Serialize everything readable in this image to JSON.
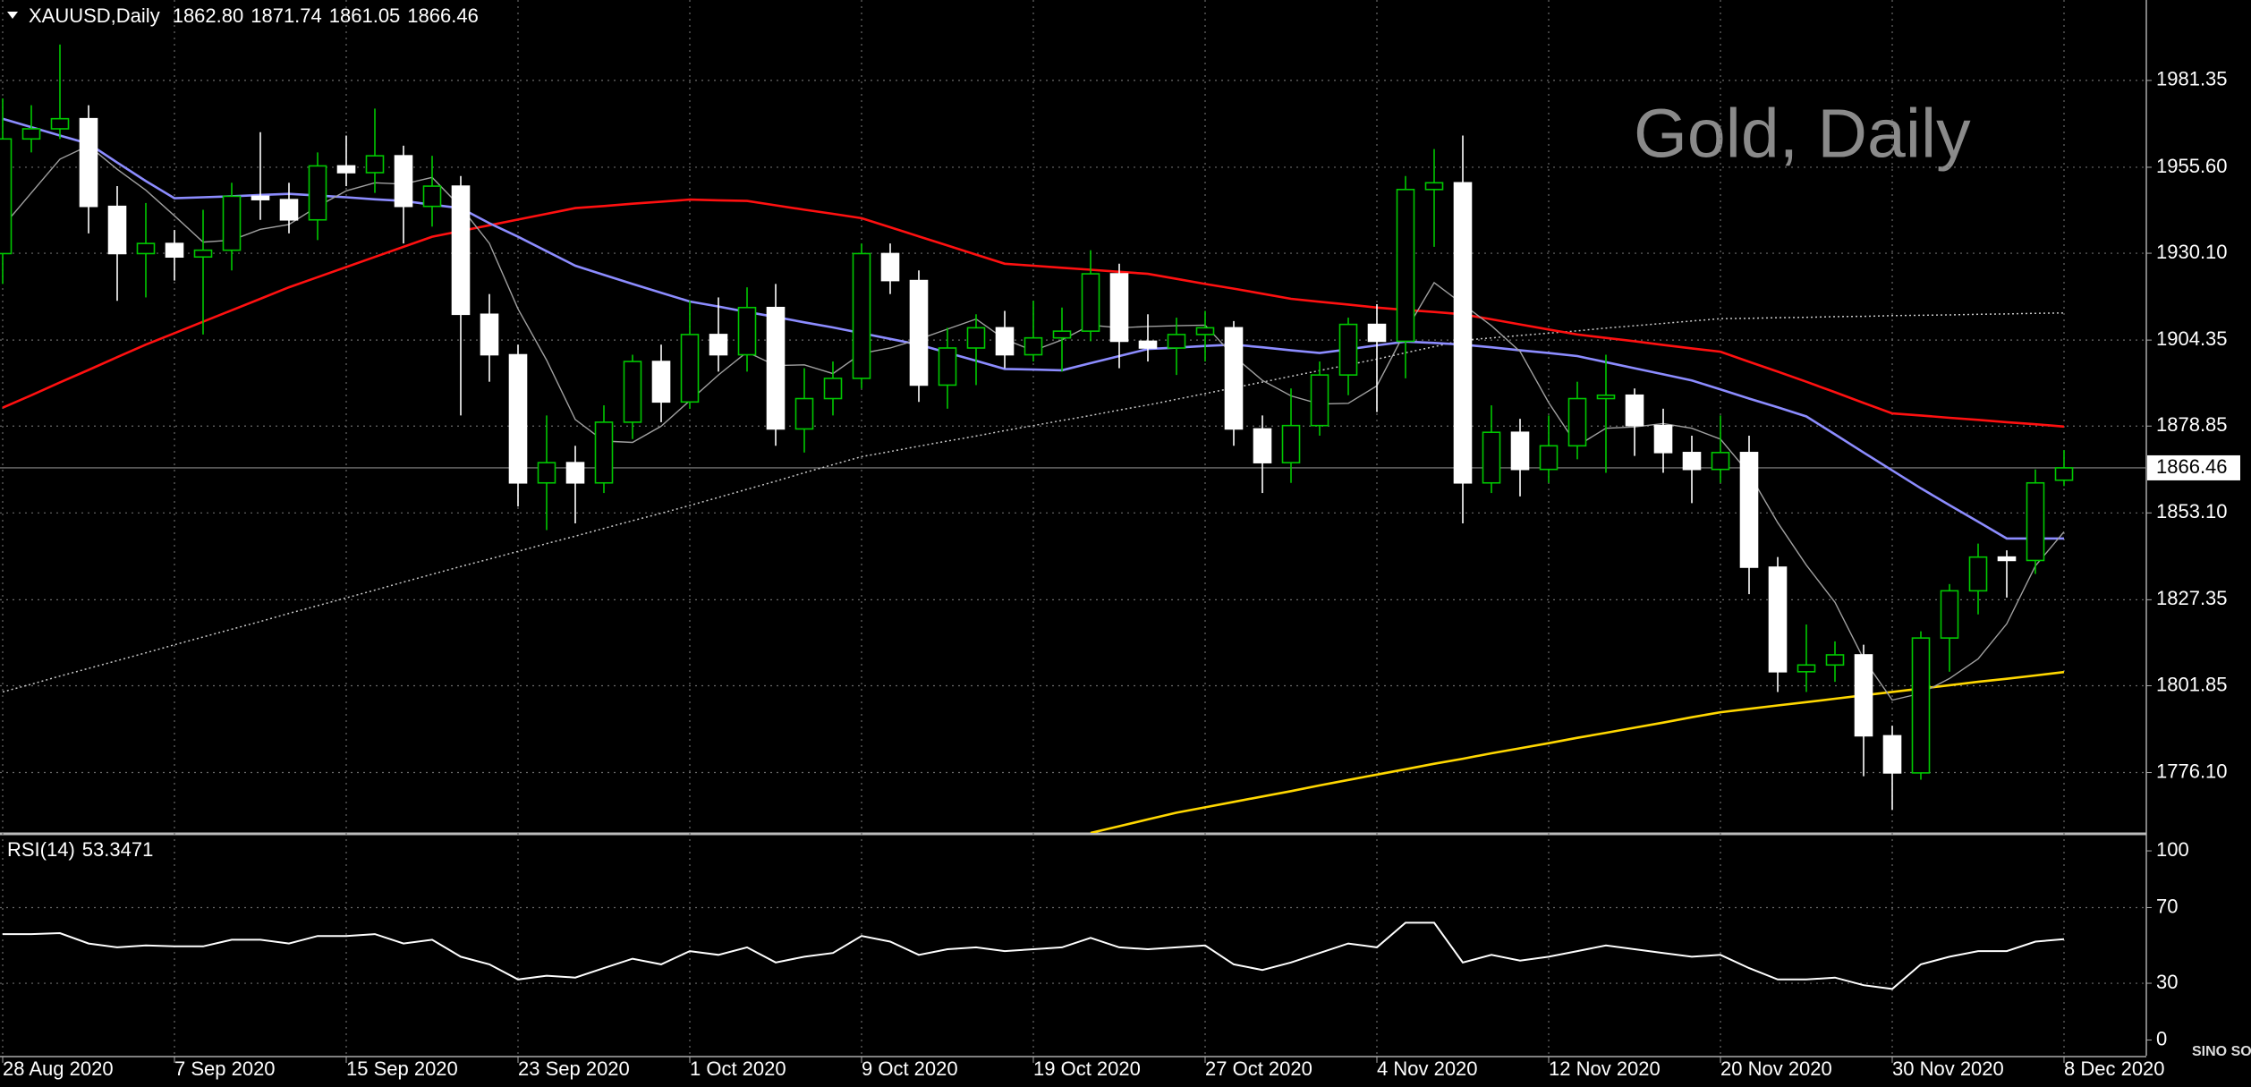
{
  "chart_data": [
    {
      "type": "candlestick",
      "title": "XAUUSD,Daily",
      "title_values": [
        "1862.80",
        "1871.74",
        "1861.05",
        "1866.46"
      ],
      "annotation": "Gold, Daily",
      "categories": [
        "28 Aug 2020",
        null,
        null,
        null,
        null,
        null,
        "7 Sep 2020",
        null,
        null,
        null,
        null,
        null,
        "15 Sep 2020",
        null,
        null,
        null,
        null,
        null,
        "23 Sep 2020",
        null,
        null,
        null,
        null,
        null,
        "1 Oct 2020",
        null,
        null,
        null,
        null,
        null,
        "9 Oct 2020",
        null,
        null,
        null,
        null,
        null,
        "19 Oct 2020",
        null,
        null,
        null,
        null,
        null,
        "27 Oct 2020",
        null,
        null,
        null,
        null,
        null,
        "4 Nov 2020",
        null,
        null,
        null,
        null,
        null,
        "12 Nov 2020",
        null,
        null,
        null,
        null,
        null,
        "20 Nov 2020",
        null,
        null,
        null,
        null,
        null,
        "30 Nov 2020",
        null,
        null,
        null,
        null,
        null,
        "8 Dec 2020"
      ],
      "open": [
        1930,
        1964,
        1967,
        1970,
        1944,
        1930,
        1933,
        1929,
        1931,
        1947,
        1946,
        1940,
        1956,
        1954,
        1959,
        1944,
        1950,
        1912,
        1900,
        1862,
        1868,
        1862,
        1880,
        1898,
        1886,
        1906,
        1900,
        1914,
        1878,
        1887,
        1893,
        1930,
        1922,
        1891,
        1902,
        1908,
        1900,
        1905,
        1907,
        1924,
        1904,
        1902,
        1906,
        1908,
        1878,
        1868,
        1879,
        1894,
        1909,
        1904,
        1949,
        1951,
        1862,
        1877,
        1866,
        1873,
        1887,
        1888,
        1879,
        1871,
        1866,
        1871,
        1837,
        1806,
        1808,
        1811,
        1787,
        1776,
        1816,
        1830,
        1840,
        1839,
        1862.8
      ],
      "high": [
        1976,
        1974,
        1992,
        1974,
        1950,
        1945,
        1937,
        1943,
        1951,
        1966,
        1951,
        1960,
        1965,
        1973,
        1962,
        1959,
        1953,
        1918,
        1903,
        1882,
        1873,
        1885,
        1900,
        1903,
        1916,
        1917,
        1920,
        1921,
        1896,
        1898,
        1933,
        1933,
        1925,
        1908,
        1912,
        1913,
        1916,
        1914,
        1931,
        1927,
        1912,
        1911,
        1913,
        1910,
        1882,
        1890,
        1898,
        1911,
        1915,
        1953,
        1961,
        1965,
        1885,
        1881,
        1882,
        1892,
        1900,
        1890,
        1884,
        1876,
        1882,
        1876,
        1840,
        1820,
        1815,
        1814,
        1790,
        1818,
        1832,
        1844,
        1842,
        1866,
        1871.74
      ],
      "low": [
        1921,
        1960,
        1964,
        1936,
        1916,
        1917,
        1922,
        1906,
        1925,
        1940,
        1936,
        1934,
        1950,
        1948,
        1933,
        1938,
        1882,
        1892,
        1855,
        1848,
        1850,
        1859,
        1875,
        1880,
        1884,
        1895,
        1895,
        1873,
        1871,
        1882,
        1890,
        1918,
        1886,
        1884,
        1891,
        1896,
        1898,
        1895,
        1904,
        1896,
        1898,
        1894,
        1898,
        1873,
        1859,
        1862,
        1876,
        1888,
        1883,
        1893,
        1932,
        1850,
        1859,
        1858,
        1862,
        1869,
        1865,
        1870,
        1865,
        1856,
        1862,
        1829,
        1800,
        1800,
        1803,
        1775,
        1765,
        1774,
        1806,
        1823,
        1828,
        1835,
        1861.05
      ],
      "close": [
        1964,
        1967,
        1970,
        1944,
        1930,
        1933,
        1929,
        1931,
        1947,
        1946,
        1940,
        1956,
        1954,
        1959,
        1944,
        1950,
        1912,
        1900,
        1862,
        1868,
        1862,
        1880,
        1898,
        1886,
        1906,
        1900,
        1914,
        1878,
        1887,
        1893,
        1930,
        1922,
        1891,
        1902,
        1908,
        1900,
        1905,
        1907,
        1924,
        1904,
        1902,
        1906,
        1908,
        1878,
        1868,
        1879,
        1894,
        1909,
        1904,
        1949,
        1951,
        1862,
        1877,
        1866,
        1873,
        1887,
        1888,
        1879,
        1871,
        1866,
        1871,
        1837,
        1806,
        1808,
        1811,
        1787,
        1776,
        1816,
        1830,
        1840,
        1839,
        1862,
        1866.46
      ],
      "up_color": "#00c800",
      "down_color": "#ffffff",
      "lines": [
        {
          "color": "#c8c8c8",
          "dashed": true,
          "values": [
            1800,
            1802.3,
            1804.7,
            1807,
            1809.3,
            1811.6,
            1814,
            1816.3,
            1818.6,
            1820.9,
            1823.3,
            1825.6,
            1827.9,
            1830.2,
            1832.6,
            1834.9,
            1837.2,
            1839.4,
            1841.7,
            1844,
            1846.2,
            1848.5,
            1850.8,
            1853,
            1855.3,
            1857.7,
            1860.1,
            1862.5,
            1865,
            1867.4,
            1869.8,
            1871.3,
            1872.9,
            1874.4,
            1875.9,
            1877.5,
            1879,
            1880.5,
            1882,
            1883.6,
            1885.1,
            1886.8,
            1888.5,
            1890.2,
            1891.9,
            1893.6,
            1895.3,
            1897,
            1898.7,
            1900.6,
            1902.4,
            1904.3,
            1905,
            1905.7,
            1906.4,
            1907.1,
            1907.9,
            1908.6,
            1909.3,
            1910,
            1910.7,
            1910.8,
            1911,
            1911.1,
            1911.3,
            1911.4,
            1911.6,
            1911.7,
            1911.8,
            1912,
            1912.1,
            1912.3,
            1912.4
          ]
        },
        {
          "color": "#ffd700",
          "dashed": false,
          "values": [
            null,
            null,
            null,
            null,
            null,
            null,
            null,
            null,
            null,
            null,
            null,
            null,
            null,
            null,
            null,
            null,
            null,
            null,
            null,
            null,
            null,
            null,
            null,
            null,
            null,
            null,
            null,
            null,
            null,
            null,
            null,
            null,
            null,
            null,
            null,
            null,
            null,
            null,
            1758.2,
            1760.2,
            1762.2,
            1764.2,
            1765.8,
            1767.4,
            1769,
            1770.6,
            1772.3,
            1773.9,
            1775.5,
            1777.1,
            1778.7,
            1780.2,
            1781.8,
            1783.3,
            1784.8,
            1786.4,
            1787.9,
            1789.4,
            1790.9,
            1792.5,
            1794,
            1795,
            1796,
            1797,
            1798,
            1799,
            1800,
            1801,
            1802,
            1803,
            1803.9,
            1804.9,
            1805.9
          ]
        },
        {
          "color": "#ff1010",
          "dashed": false,
          "values": [
            1884.3,
            1888,
            1891.8,
            1895.5,
            1899.3,
            1903,
            1906.4,
            1909.8,
            1913.2,
            1916.6,
            1920,
            1923,
            1926,
            1929,
            1932,
            1935,
            1936.7,
            1938.4,
            1940.1,
            1941.8,
            1943.5,
            1944.1,
            1944.8,
            1945.4,
            1946,
            1945.8,
            1945.6,
            1944.3,
            1943,
            1941.8,
            1940.5,
            1937.8,
            1935.1,
            1932.4,
            1929.7,
            1927,
            1926.4,
            1925.8,
            1925.2,
            1924.6,
            1924,
            1922.5,
            1921,
            1919.6,
            1918.1,
            1916.6,
            1915.7,
            1914.9,
            1914,
            1913.3,
            1912.7,
            1912,
            1910.5,
            1909,
            1907.5,
            1906,
            1905,
            1904,
            1902.9,
            1901.9,
            1900.9,
            1897.9,
            1895,
            1892,
            1888.9,
            1885.7,
            1882.6,
            1882,
            1881.3,
            1880.7,
            1880,
            1879.4,
            1878.7
          ]
        },
        {
          "color": "#8c8cff",
          "dashed": false,
          "values": [
            1970,
            1967.5,
            1965,
            1962.6,
            1957,
            1951.5,
            1946.4,
            1946.7,
            1947,
            1947.4,
            1947.7,
            1947.2,
            1946.7,
            1946.1,
            1945.6,
            1944.5,
            1943.5,
            1939,
            1935,
            1930.7,
            1926.4,
            1923.7,
            1921,
            1918.4,
            1915.8,
            1914.3,
            1912.7,
            1911.2,
            1909.6,
            1908.1,
            1906.4,
            1904.7,
            1903,
            1900.6,
            1898.2,
            1895.8,
            1895.6,
            1895.4,
            1897.5,
            1899.6,
            1901.7,
            1902.1,
            1902.6,
            1903,
            1902.2,
            1901.3,
            1900.5,
            1901.6,
            1902.8,
            1903.9,
            1903.5,
            1903,
            1902.2,
            1901.3,
            1900.5,
            1899.6,
            1897.8,
            1896,
            1894.2,
            1892.4,
            1889.7,
            1887,
            1884.4,
            1881.7,
            1876.4,
            1871,
            1865.7,
            1860.4,
            1855.4,
            1850.5,
            1845.5,
            1845.5,
            1845.5
          ]
        },
        {
          "color": "#a0a0a0",
          "dashed": false,
          "values": [
            1938,
            1948,
            1958,
            1962,
            1955,
            1948.8,
            1941.2,
            1933.4,
            1934,
            1937.2,
            1938.6,
            1944,
            1948.6,
            1951,
            1950.6,
            1952.6,
            1943.8,
            1933,
            1913.6,
            1898.4,
            1880.8,
            1874.4,
            1874,
            1878.8,
            1886.4,
            1894,
            1900.8,
            1896.8,
            1897,
            1894.4,
            1900.4,
            1902,
            1904.6,
            1907.6,
            1910.6,
            1904.6,
            1901.2,
            1904.4,
            1908.8,
            1908,
            1908.4,
            1908.6,
            1908.8,
            1899.6,
            1892.4,
            1887.8,
            1885.4,
            1885.6,
            1890.8,
            1907,
            1921.4,
            1915,
            1908.6,
            1901,
            1885.8,
            1873,
            1878.2,
            1878.6,
            1879.6,
            1878.2,
            1875,
            1864.8,
            1850.2,
            1837.6,
            1826.6,
            1809.8,
            1797.6,
            1799.6,
            1804,
            1809.8,
            1820.2,
            1837.4,
            1847.5
          ]
        }
      ],
      "current_price": 1866.46,
      "ylim": [
        1758.2,
        2005.2
      ],
      "yticks": [
        {
          "value": 1776.1,
          "label": "1776.10"
        },
        1801.85,
        1827.35,
        {
          "value": 1853.1,
          "label": "1853.10"
        },
        1878.85,
        1904.35,
        {
          "value": 1930.1,
          "label": "1930.10"
        },
        {
          "value": 1955.6,
          "label": "1955.60"
        },
        1981.35
      ],
      "grid": true
    },
    {
      "type": "line",
      "title": "RSI(14)",
      "color": "#ffffff",
      "values": [
        56,
        56,
        56.5,
        51,
        49,
        50,
        49.5,
        49.5,
        53,
        53,
        51,
        55,
        55,
        56,
        51,
        53,
        44,
        40,
        32,
        34,
        33,
        38,
        43,
        40,
        47,
        45,
        49,
        41,
        44,
        46,
        55,
        52,
        45,
        48,
        49,
        47,
        48,
        49,
        54,
        49,
        48,
        49,
        50,
        40,
        37,
        41,
        46,
        51,
        49,
        62,
        62,
        41,
        45,
        42,
        44,
        47,
        50,
        48,
        46,
        44,
        45,
        38,
        32,
        32,
        33,
        29,
        27,
        40,
        44,
        47,
        47,
        52,
        53.3471
      ],
      "ylim": [
        -8.3,
        107.6
      ],
      "yticks": [
        0,
        30,
        70,
        100
      ],
      "levels": [
        30,
        70
      ]
    }
  ],
  "logo": "SINO SOUND"
}
